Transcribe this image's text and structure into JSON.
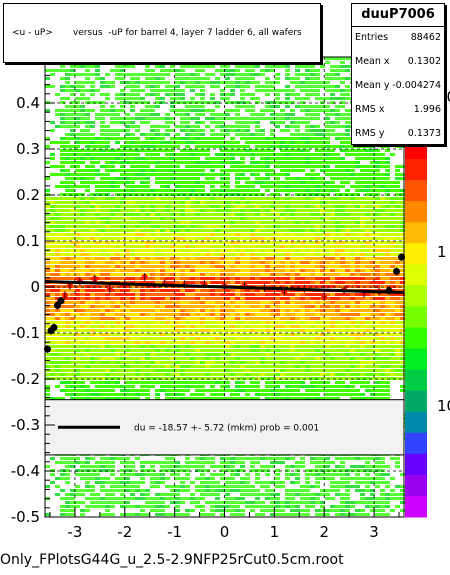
{
  "chart_data": {
    "type": "scatter",
    "title": "<u - uP>       versus  -uP for barrel 4, layer 7 ladder 6, all wafers",
    "xlabel": "",
    "ylabel": "",
    "xlim": [
      -3.6,
      3.6
    ],
    "ylim": [
      -0.5,
      0.5
    ],
    "x_ticks": [
      "-3",
      "-2",
      "-1",
      "0",
      "1",
      "2",
      "3"
    ],
    "x_tick_values": [
      -3,
      -2,
      -1,
      0,
      1,
      2,
      3
    ],
    "y_ticks": [
      "-0.5",
      "-0.4",
      "-0.3",
      "-0.2",
      "-0.1",
      "0",
      "0.1",
      "0.2",
      "0.3",
      "0.4"
    ],
    "y_tick_values": [
      -0.5,
      -0.4,
      -0.3,
      -0.2,
      -0.1,
      0,
      0.1,
      0.2,
      0.3,
      0.4
    ],
    "grid": true,
    "colorbar": {
      "scale": "log",
      "labels": [
        "10",
        "1",
        "10"
      ],
      "label_values": [
        10,
        1,
        10
      ]
    },
    "profile_points": {
      "x": [
        -3.55,
        -3.48,
        -3.42,
        -3.35,
        -3.28,
        -3.2,
        -3.1,
        -2.9,
        -2.6,
        -2.3,
        -2.0,
        -1.6,
        -1.2,
        -0.8,
        -0.4,
        0.0,
        0.4,
        0.8,
        1.2,
        1.6,
        2.0,
        2.4,
        2.8,
        3.1,
        3.3,
        3.45,
        3.55
      ],
      "y": [
        -0.135,
        -0.095,
        -0.088,
        -0.04,
        -0.03,
        -0.018,
        0.003,
        0.012,
        0.018,
        -0.004,
        0.006,
        0.022,
        0.008,
        0.006,
        0.006,
        0.002,
        0.003,
        -0.002,
        -0.01,
        -0.004,
        -0.022,
        -0.006,
        -0.014,
        -0.01,
        -0.008,
        0.034,
        0.065
      ]
    },
    "fit_line": {
      "x": [
        -3.6,
        3.6
      ],
      "y": [
        0.012,
        -0.012
      ]
    },
    "legend_box": {
      "y_range": [
        -0.365,
        -0.245
      ],
      "label": "du =  -18.57 +- 5.72 (mkm) prob = 0.001"
    }
  },
  "histogram_name": "duuP7006",
  "stats": [
    {
      "label": "Entries",
      "value": "88462"
    },
    {
      "label": "Mean x",
      "value": "0.1302"
    },
    {
      "label": "Mean y",
      "value": "-0.004274"
    },
    {
      "label": "RMS x",
      "value": "1.996"
    },
    {
      "label": "RMS y",
      "value": "0.1373"
    }
  ],
  "footer": "Only_FPlotsG44G_u_2.5-2.9NFP25rCut0.5cm.root"
}
